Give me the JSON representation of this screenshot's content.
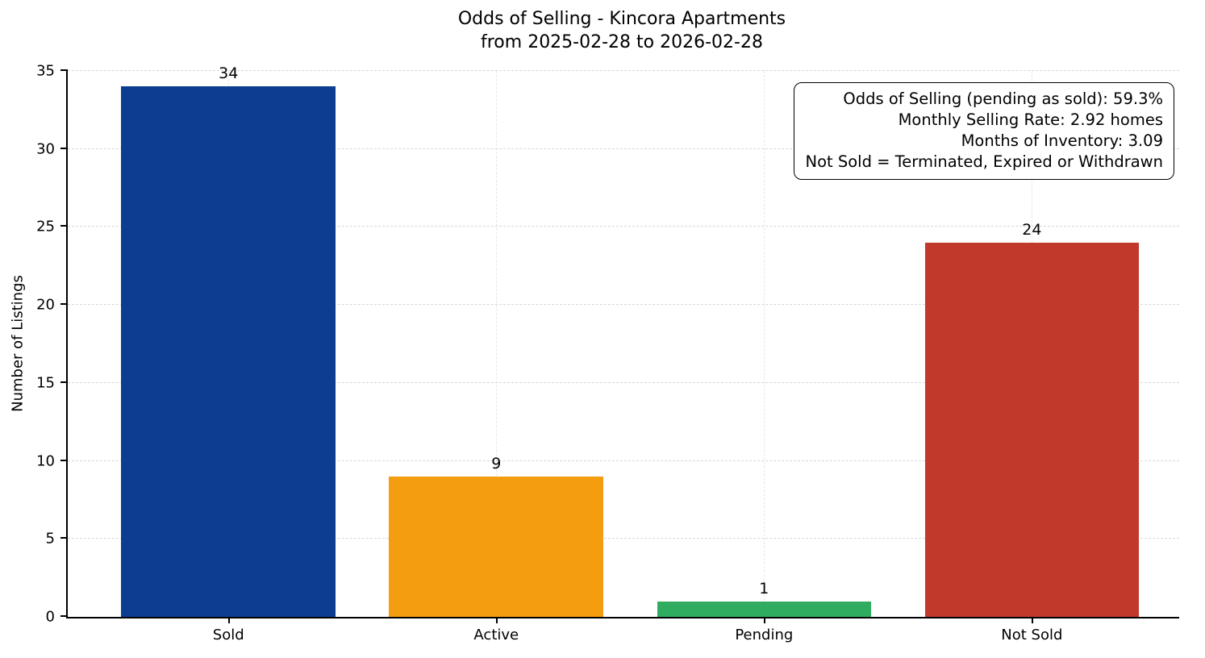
{
  "chart_data": {
    "type": "bar",
    "title": "Odds of Selling - Kincora Apartments",
    "subtitle": "from 2025-02-28 to 2026-02-28",
    "xlabel": "",
    "ylabel": "Number of Listings",
    "categories": [
      "Sold",
      "Active",
      "Pending",
      "Not Sold"
    ],
    "values": [
      34,
      9,
      1,
      24
    ],
    "bar_labels": [
      "34",
      "9",
      "1",
      "24"
    ],
    "colors": [
      "#0d3d91",
      "#f49d0f",
      "#2fac5f",
      "#c1392b"
    ],
    "ylim": [
      0,
      35
    ],
    "yticks": [
      0,
      5,
      10,
      15,
      20,
      25,
      30,
      35
    ],
    "grid": "dashed-both-axes",
    "legend": "none",
    "annotation_lines": [
      "Odds of Selling (pending as sold): 59.3%",
      "Monthly Selling Rate: 2.92 homes",
      "Months of Inventory: 3.09",
      "Not Sold = Terminated, Expired or Withdrawn"
    ],
    "stats": {
      "odds_of_selling_pending_as_sold_pct": 59.3,
      "monthly_selling_rate_homes": 2.92,
      "months_of_inventory": 3.09
    }
  }
}
